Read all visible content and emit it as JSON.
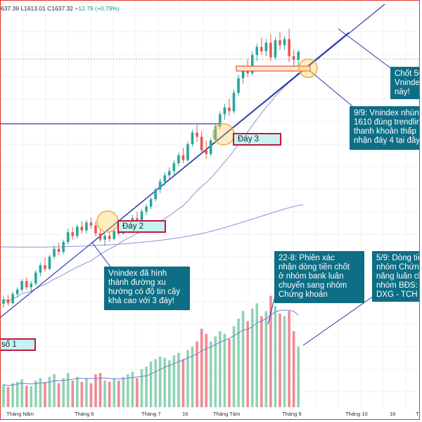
{
  "header": {
    "ohlc_text": "637.39  L1613.01  C1637.32",
    "change_text": "+12.79 (+0.79%)"
  },
  "chart_data": {
    "type": "candlestick",
    "x_axis_labels": [
      "Tháng Năm",
      "Tháng 6",
      "Tháng 7",
      "16",
      "Tháng Tám",
      "Tháng 9",
      "Tháng 10",
      "16",
      "T"
    ],
    "candles": [
      {
        "o": 1225,
        "h": 1238,
        "l": 1218,
        "c": 1232
      },
      {
        "o": 1232,
        "h": 1240,
        "l": 1222,
        "c": 1226
      },
      {
        "o": 1226,
        "h": 1245,
        "l": 1224,
        "c": 1241
      },
      {
        "o": 1241,
        "h": 1252,
        "l": 1235,
        "c": 1248
      },
      {
        "o": 1248,
        "h": 1265,
        "l": 1244,
        "c": 1262
      },
      {
        "o": 1262,
        "h": 1268,
        "l": 1248,
        "c": 1252
      },
      {
        "o": 1252,
        "h": 1262,
        "l": 1244,
        "c": 1258
      },
      {
        "o": 1258,
        "h": 1280,
        "l": 1255,
        "c": 1276
      },
      {
        "o": 1276,
        "h": 1292,
        "l": 1270,
        "c": 1288
      },
      {
        "o": 1288,
        "h": 1300,
        "l": 1278,
        "c": 1282
      },
      {
        "o": 1282,
        "h": 1305,
        "l": 1280,
        "c": 1302
      },
      {
        "o": 1302,
        "h": 1320,
        "l": 1298,
        "c": 1315
      },
      {
        "o": 1315,
        "h": 1325,
        "l": 1305,
        "c": 1310
      },
      {
        "o": 1310,
        "h": 1330,
        "l": 1306,
        "c": 1326
      },
      {
        "o": 1326,
        "h": 1348,
        "l": 1322,
        "c": 1342
      },
      {
        "o": 1342,
        "h": 1350,
        "l": 1330,
        "c": 1336
      },
      {
        "o": 1336,
        "h": 1355,
        "l": 1332,
        "c": 1351
      },
      {
        "o": 1351,
        "h": 1360,
        "l": 1340,
        "c": 1345
      },
      {
        "o": 1345,
        "h": 1362,
        "l": 1340,
        "c": 1358
      },
      {
        "o": 1358,
        "h": 1366,
        "l": 1348,
        "c": 1353
      },
      {
        "o": 1353,
        "h": 1360,
        "l": 1335,
        "c": 1340
      },
      {
        "o": 1340,
        "h": 1346,
        "l": 1326,
        "c": 1330
      },
      {
        "o": 1330,
        "h": 1340,
        "l": 1320,
        "c": 1336
      },
      {
        "o": 1336,
        "h": 1344,
        "l": 1326,
        "c": 1331
      },
      {
        "o": 1331,
        "h": 1348,
        "l": 1329,
        "c": 1344
      },
      {
        "o": 1344,
        "h": 1352,
        "l": 1336,
        "c": 1340
      },
      {
        "o": 1340,
        "h": 1356,
        "l": 1338,
        "c": 1352
      },
      {
        "o": 1352,
        "h": 1362,
        "l": 1346,
        "c": 1358
      },
      {
        "o": 1358,
        "h": 1370,
        "l": 1352,
        "c": 1365
      },
      {
        "o": 1365,
        "h": 1375,
        "l": 1358,
        "c": 1362
      },
      {
        "o": 1362,
        "h": 1380,
        "l": 1360,
        "c": 1376
      },
      {
        "o": 1376,
        "h": 1388,
        "l": 1370,
        "c": 1384
      },
      {
        "o": 1384,
        "h": 1400,
        "l": 1380,
        "c": 1396
      },
      {
        "o": 1396,
        "h": 1415,
        "l": 1392,
        "c": 1412
      },
      {
        "o": 1412,
        "h": 1430,
        "l": 1406,
        "c": 1425
      },
      {
        "o": 1425,
        "h": 1440,
        "l": 1418,
        "c": 1435
      },
      {
        "o": 1435,
        "h": 1448,
        "l": 1428,
        "c": 1442
      },
      {
        "o": 1442,
        "h": 1460,
        "l": 1436,
        "c": 1455
      },
      {
        "o": 1455,
        "h": 1472,
        "l": 1450,
        "c": 1468
      },
      {
        "o": 1468,
        "h": 1480,
        "l": 1455,
        "c": 1460
      },
      {
        "o": 1460,
        "h": 1490,
        "l": 1458,
        "c": 1486
      },
      {
        "o": 1486,
        "h": 1510,
        "l": 1482,
        "c": 1505
      },
      {
        "o": 1505,
        "h": 1520,
        "l": 1490,
        "c": 1498
      },
      {
        "o": 1498,
        "h": 1508,
        "l": 1470,
        "c": 1476
      },
      {
        "o": 1476,
        "h": 1492,
        "l": 1462,
        "c": 1470
      },
      {
        "o": 1470,
        "h": 1496,
        "l": 1466,
        "c": 1492
      },
      {
        "o": 1492,
        "h": 1520,
        "l": 1488,
        "c": 1515
      },
      {
        "o": 1515,
        "h": 1540,
        "l": 1510,
        "c": 1535
      },
      {
        "o": 1535,
        "h": 1552,
        "l": 1526,
        "c": 1546
      },
      {
        "o": 1546,
        "h": 1560,
        "l": 1532,
        "c": 1540
      },
      {
        "o": 1540,
        "h": 1575,
        "l": 1536,
        "c": 1570
      },
      {
        "o": 1570,
        "h": 1600,
        "l": 1565,
        "c": 1594
      },
      {
        "o": 1594,
        "h": 1615,
        "l": 1585,
        "c": 1608
      },
      {
        "o": 1608,
        "h": 1625,
        "l": 1596,
        "c": 1602
      },
      {
        "o": 1602,
        "h": 1638,
        "l": 1598,
        "c": 1632
      },
      {
        "o": 1632,
        "h": 1650,
        "l": 1622,
        "c": 1645
      },
      {
        "o": 1645,
        "h": 1660,
        "l": 1632,
        "c": 1638
      },
      {
        "o": 1638,
        "h": 1658,
        "l": 1630,
        "c": 1652
      },
      {
        "o": 1652,
        "h": 1666,
        "l": 1622,
        "c": 1628
      },
      {
        "o": 1628,
        "h": 1660,
        "l": 1624,
        "c": 1656
      },
      {
        "o": 1656,
        "h": 1670,
        "l": 1640,
        "c": 1648
      },
      {
        "o": 1648,
        "h": 1663,
        "l": 1640,
        "c": 1658
      },
      {
        "o": 1658,
        "h": 1675,
        "l": 1620,
        "c": 1630
      },
      {
        "o": 1630,
        "h": 1640,
        "l": 1610,
        "c": 1624
      },
      {
        "o": 1624,
        "h": 1640,
        "l": 1613,
        "c": 1637
      }
    ],
    "volumes": [
      {
        "v": 180,
        "up": true
      },
      {
        "v": 160,
        "up": false
      },
      {
        "v": 190,
        "up": true
      },
      {
        "v": 200,
        "up": true
      },
      {
        "v": 220,
        "up": true
      },
      {
        "v": 170,
        "up": false
      },
      {
        "v": 165,
        "up": true
      },
      {
        "v": 210,
        "up": true
      },
      {
        "v": 230,
        "up": true
      },
      {
        "v": 200,
        "up": false
      },
      {
        "v": 240,
        "up": true
      },
      {
        "v": 260,
        "up": true
      },
      {
        "v": 190,
        "up": false
      },
      {
        "v": 230,
        "up": true
      },
      {
        "v": 270,
        "up": true
      },
      {
        "v": 210,
        "up": false
      },
      {
        "v": 240,
        "up": true
      },
      {
        "v": 200,
        "up": false
      },
      {
        "v": 230,
        "up": true
      },
      {
        "v": 190,
        "up": false
      },
      {
        "v": 260,
        "up": false
      },
      {
        "v": 270,
        "up": false
      },
      {
        "v": 210,
        "up": true
      },
      {
        "v": 200,
        "up": false
      },
      {
        "v": 230,
        "up": true
      },
      {
        "v": 210,
        "up": false
      },
      {
        "v": 240,
        "up": true
      },
      {
        "v": 260,
        "up": true
      },
      {
        "v": 280,
        "up": true
      },
      {
        "v": 230,
        "up": false
      },
      {
        "v": 300,
        "up": true
      },
      {
        "v": 320,
        "up": true
      },
      {
        "v": 360,
        "up": true
      },
      {
        "v": 380,
        "up": true
      },
      {
        "v": 400,
        "up": true
      },
      {
        "v": 390,
        "up": true
      },
      {
        "v": 370,
        "up": true
      },
      {
        "v": 410,
        "up": true
      },
      {
        "v": 430,
        "up": true
      },
      {
        "v": 380,
        "up": false
      },
      {
        "v": 450,
        "up": true
      },
      {
        "v": 480,
        "up": true
      },
      {
        "v": 520,
        "up": false
      },
      {
        "v": 620,
        "up": false
      },
      {
        "v": 580,
        "up": false
      },
      {
        "v": 520,
        "up": true
      },
      {
        "v": 560,
        "up": true
      },
      {
        "v": 600,
        "up": true
      },
      {
        "v": 580,
        "up": true
      },
      {
        "v": 540,
        "up": false
      },
      {
        "v": 640,
        "up": true
      },
      {
        "v": 700,
        "up": true
      },
      {
        "v": 760,
        "up": true
      },
      {
        "v": 680,
        "up": false
      },
      {
        "v": 780,
        "up": true
      },
      {
        "v": 820,
        "up": true
      },
      {
        "v": 720,
        "up": false
      },
      {
        "v": 760,
        "up": true
      },
      {
        "v": 880,
        "up": false
      },
      {
        "v": 800,
        "up": true
      },
      {
        "v": 740,
        "up": false
      },
      {
        "v": 720,
        "up": true
      },
      {
        "v": 760,
        "up": false
      },
      {
        "v": 600,
        "up": false
      },
      {
        "v": 480,
        "up": true
      }
    ],
    "levels": {
      "support_line": 1610,
      "upper_line": 1545
    },
    "colors": {
      "up": "#26a69a",
      "down": "#ef5350",
      "vol_up": "#8ed3b4",
      "vol_down": "#f08a93",
      "trend": "#2b3aa8",
      "ma": "#8c93d8"
    }
  },
  "annotations": {
    "callout_chot": "Chốt 50\nVnindex\nnày!",
    "callout_99": "9/9: Vnindex nhún\n1610 đúng trendlin\nthanh khoản thấp\nnhận đáy 4 tại đây",
    "callout_trend": "Vnindex đã hình\nthành đường xu\nhướng có độ tin cậy\nkhá cao với 3 đáy!",
    "callout_228": "22-8: Phiên xác\nnhận dòng tiền chốt\nở nhóm bank luân\nchuyển sang nhóm\nChứng khoán",
    "callout_59": "5/9: Dòng tiề\nnhóm Chứng\nnăng luân ch\nnhóm BĐS: C\nDXG - TCH -",
    "label_day3": "Đáy 3",
    "label_day2": "Đáy 2",
    "label_day1": "số 1"
  }
}
